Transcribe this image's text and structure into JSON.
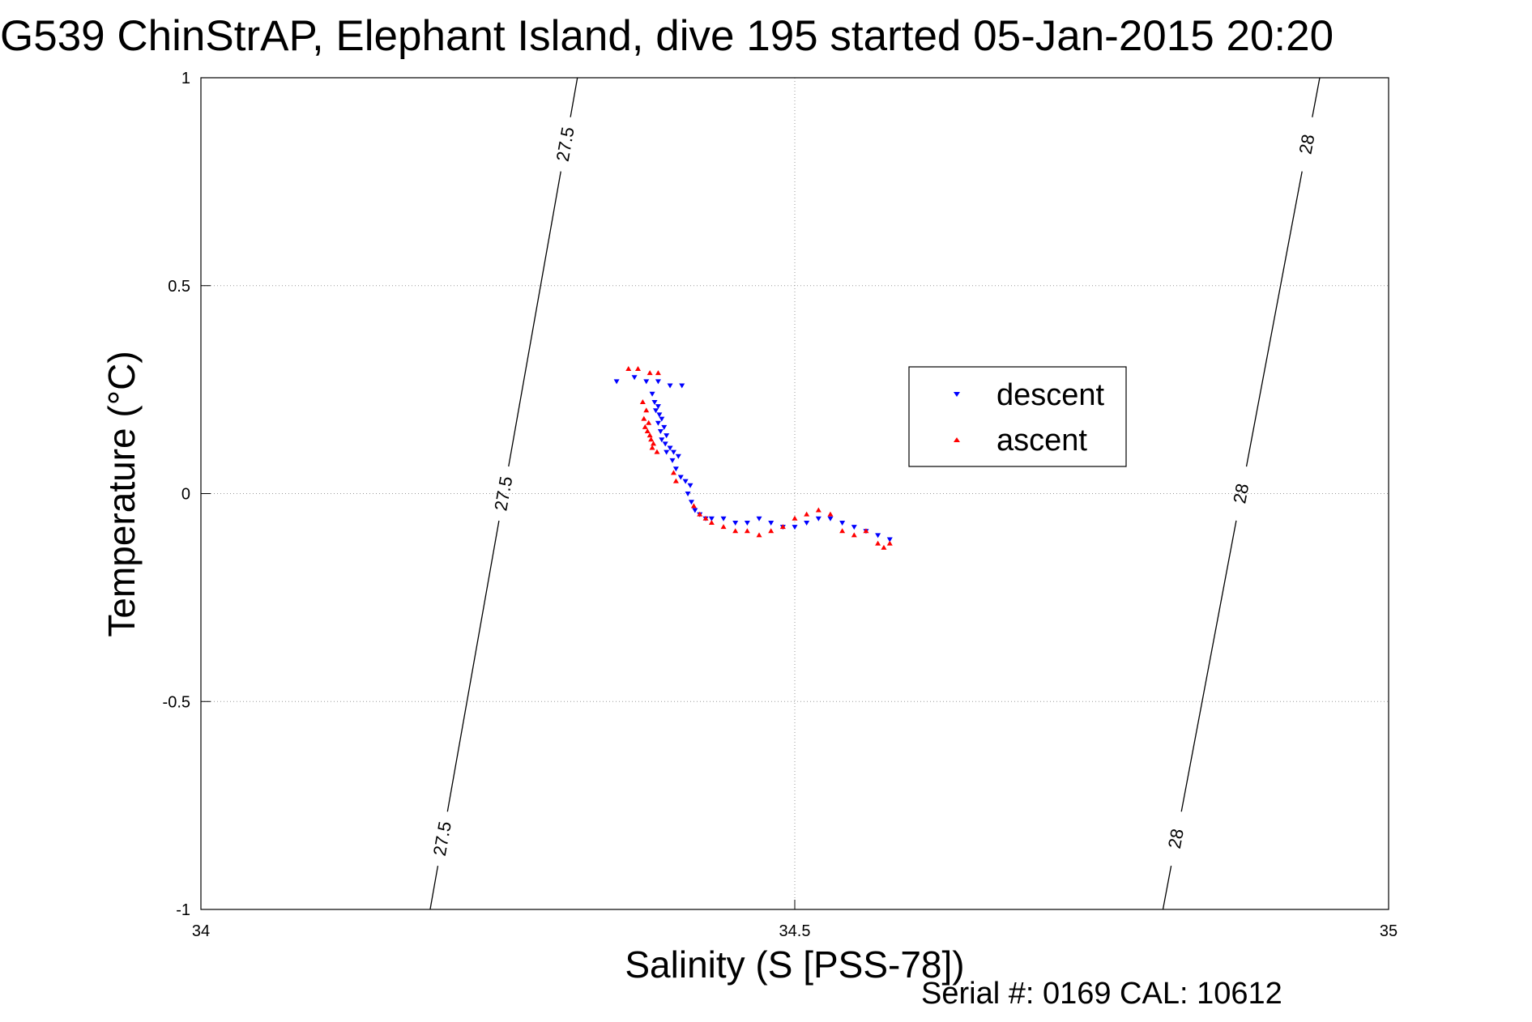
{
  "chart_data": {
    "type": "scatter",
    "title": "G539 ChinStrAP, Elephant Island, dive 195 started 05-Jan-2015 20:20",
    "xlabel": "Salinity (S [PSS-78])",
    "ylabel": "Temperature (°C)",
    "xlim": [
      34,
      35
    ],
    "ylim": [
      -1,
      1
    ],
    "x_ticks": [
      "34",
      "34.5",
      "35"
    ],
    "y_ticks": [
      "-1",
      "-0.5",
      "0",
      "0.5",
      "1"
    ],
    "x_tick_values": [
      34,
      34.5,
      35
    ],
    "y_tick_values": [
      -1,
      -0.5,
      0,
      0.5,
      1
    ],
    "grid": true,
    "legend_position": "top-right",
    "series": [
      {
        "name": "descent",
        "color": "#0000ff",
        "marker": "triangle-down",
        "points": [
          [
            34.35,
            0.27
          ],
          [
            34.365,
            0.28
          ],
          [
            34.375,
            0.27
          ],
          [
            34.385,
            0.27
          ],
          [
            34.395,
            0.26
          ],
          [
            34.405,
            0.26
          ],
          [
            34.38,
            0.24
          ],
          [
            34.382,
            0.22
          ],
          [
            34.385,
            0.21
          ],
          [
            34.383,
            0.2
          ],
          [
            34.386,
            0.19
          ],
          [
            34.388,
            0.18
          ],
          [
            34.385,
            0.17
          ],
          [
            34.39,
            0.16
          ],
          [
            34.387,
            0.15
          ],
          [
            34.392,
            0.14
          ],
          [
            34.388,
            0.13
          ],
          [
            34.391,
            0.12
          ],
          [
            34.395,
            0.11
          ],
          [
            34.392,
            0.1
          ],
          [
            34.398,
            0.1
          ],
          [
            34.402,
            0.09
          ],
          [
            34.397,
            0.08
          ],
          [
            34.4,
            0.06
          ],
          [
            34.404,
            0.04
          ],
          [
            34.408,
            0.03
          ],
          [
            34.412,
            0.02
          ],
          [
            34.41,
            0.0
          ],
          [
            34.413,
            -0.02
          ],
          [
            34.416,
            -0.04
          ],
          [
            34.42,
            -0.05
          ],
          [
            34.425,
            -0.06
          ],
          [
            34.43,
            -0.06
          ],
          [
            34.44,
            -0.06
          ],
          [
            34.45,
            -0.07
          ],
          [
            34.46,
            -0.07
          ],
          [
            34.47,
            -0.06
          ],
          [
            34.48,
            -0.07
          ],
          [
            34.49,
            -0.08
          ],
          [
            34.5,
            -0.08
          ],
          [
            34.51,
            -0.07
          ],
          [
            34.52,
            -0.06
          ],
          [
            34.53,
            -0.06
          ],
          [
            34.54,
            -0.07
          ],
          [
            34.55,
            -0.08
          ],
          [
            34.56,
            -0.09
          ],
          [
            34.57,
            -0.1
          ],
          [
            34.58,
            -0.11
          ]
        ]
      },
      {
        "name": "ascent",
        "color": "#ff0000",
        "marker": "triangle-up",
        "points": [
          [
            34.36,
            0.3
          ],
          [
            34.368,
            0.3
          ],
          [
            34.378,
            0.29
          ],
          [
            34.385,
            0.29
          ],
          [
            34.372,
            0.22
          ],
          [
            34.375,
            0.2
          ],
          [
            34.373,
            0.18
          ],
          [
            34.377,
            0.17
          ],
          [
            34.374,
            0.16
          ],
          [
            34.376,
            0.15
          ],
          [
            34.378,
            0.14
          ],
          [
            34.379,
            0.13
          ],
          [
            34.381,
            0.12
          ],
          [
            34.38,
            0.11
          ],
          [
            34.384,
            0.1
          ],
          [
            34.398,
            0.05
          ],
          [
            34.4,
            0.03
          ],
          [
            34.415,
            -0.03
          ],
          [
            34.42,
            -0.05
          ],
          [
            34.425,
            -0.06
          ],
          [
            34.43,
            -0.07
          ],
          [
            34.44,
            -0.08
          ],
          [
            34.45,
            -0.09
          ],
          [
            34.46,
            -0.09
          ],
          [
            34.47,
            -0.1
          ],
          [
            34.48,
            -0.09
          ],
          [
            34.49,
            -0.08
          ],
          [
            34.5,
            -0.06
          ],
          [
            34.51,
            -0.05
          ],
          [
            34.52,
            -0.04
          ],
          [
            34.53,
            -0.05
          ],
          [
            34.54,
            -0.09
          ],
          [
            34.55,
            -0.1
          ],
          [
            34.56,
            -0.09
          ],
          [
            34.57,
            -0.12
          ],
          [
            34.575,
            -0.13
          ],
          [
            34.58,
            -0.12
          ]
        ]
      }
    ],
    "isopycnals": [
      {
        "label": "27.5",
        "points": [
          [
            34.193,
            -1
          ],
          [
            34.317,
            1
          ]
        ]
      },
      {
        "label": "28",
        "points": [
          [
            34.81,
            -1
          ],
          [
            34.942,
            1
          ]
        ]
      }
    ]
  },
  "footer": {
    "serial": "Serial #: 0169 CAL: 10612"
  }
}
